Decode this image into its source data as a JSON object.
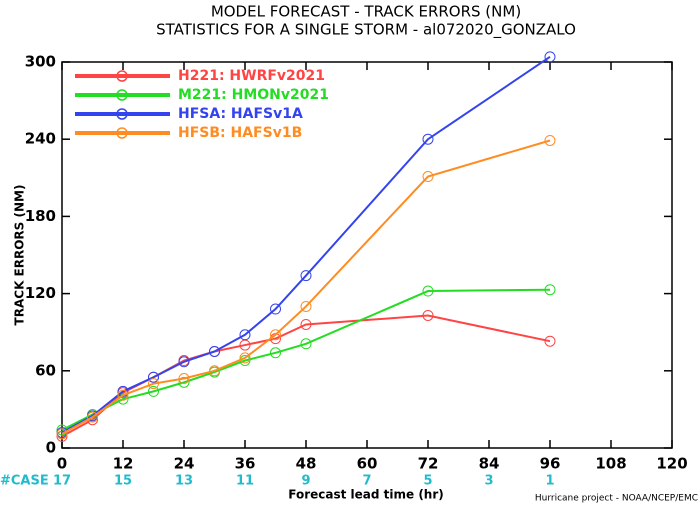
{
  "chart_data": {
    "type": "line",
    "title": "MODEL FORECAST - TRACK ERRORS (NM)",
    "subtitle": "STATISTICS FOR A SINGLE STORM - al072020_GONZALO",
    "y_label": "TRACK ERRORS (NM)",
    "x_label": "Forecast lead time (hr)",
    "footer": "Hurricane project - NOAA/NCEP/EMC",
    "x": [
      0,
      6,
      12,
      18,
      24,
      30,
      36,
      42,
      48,
      72,
      96
    ],
    "series": [
      {
        "name": "H221: HWRFv2021",
        "color": "#ff4444",
        "values": [
          9,
          22,
          43,
          55,
          68,
          75,
          80,
          85,
          96,
          103,
          83
        ]
      },
      {
        "name": "M221: HMONv2021",
        "color": "#22dd22",
        "values": [
          14,
          26,
          38,
          44,
          51,
          59,
          68,
          74,
          81,
          122,
          123
        ]
      },
      {
        "name": "HFSA: HAFSv1A",
        "color": "#3344ee",
        "values": [
          12,
          25,
          44,
          55,
          67,
          75,
          88,
          108,
          134,
          240,
          304
        ]
      },
      {
        "name": "HFSB: HAFSv1B",
        "color": "#ff8c22",
        "values": [
          11,
          24,
          41,
          50,
          54,
          60,
          70,
          88,
          110,
          211,
          239
        ]
      }
    ],
    "case_label": "#CASE",
    "case_x": [
      0,
      12,
      24,
      36,
      48,
      60,
      72,
      84,
      96
    ],
    "cases": [
      17,
      15,
      13,
      11,
      9,
      7,
      5,
      3,
      1
    ],
    "xlim": [
      0,
      120
    ],
    "xticks": [
      0,
      12,
      24,
      36,
      48,
      60,
      72,
      84,
      96,
      108,
      120
    ],
    "ylim": [
      0,
      300
    ],
    "yticks": [
      0,
      60,
      120,
      180,
      240,
      300
    ],
    "legend": "upper left"
  }
}
